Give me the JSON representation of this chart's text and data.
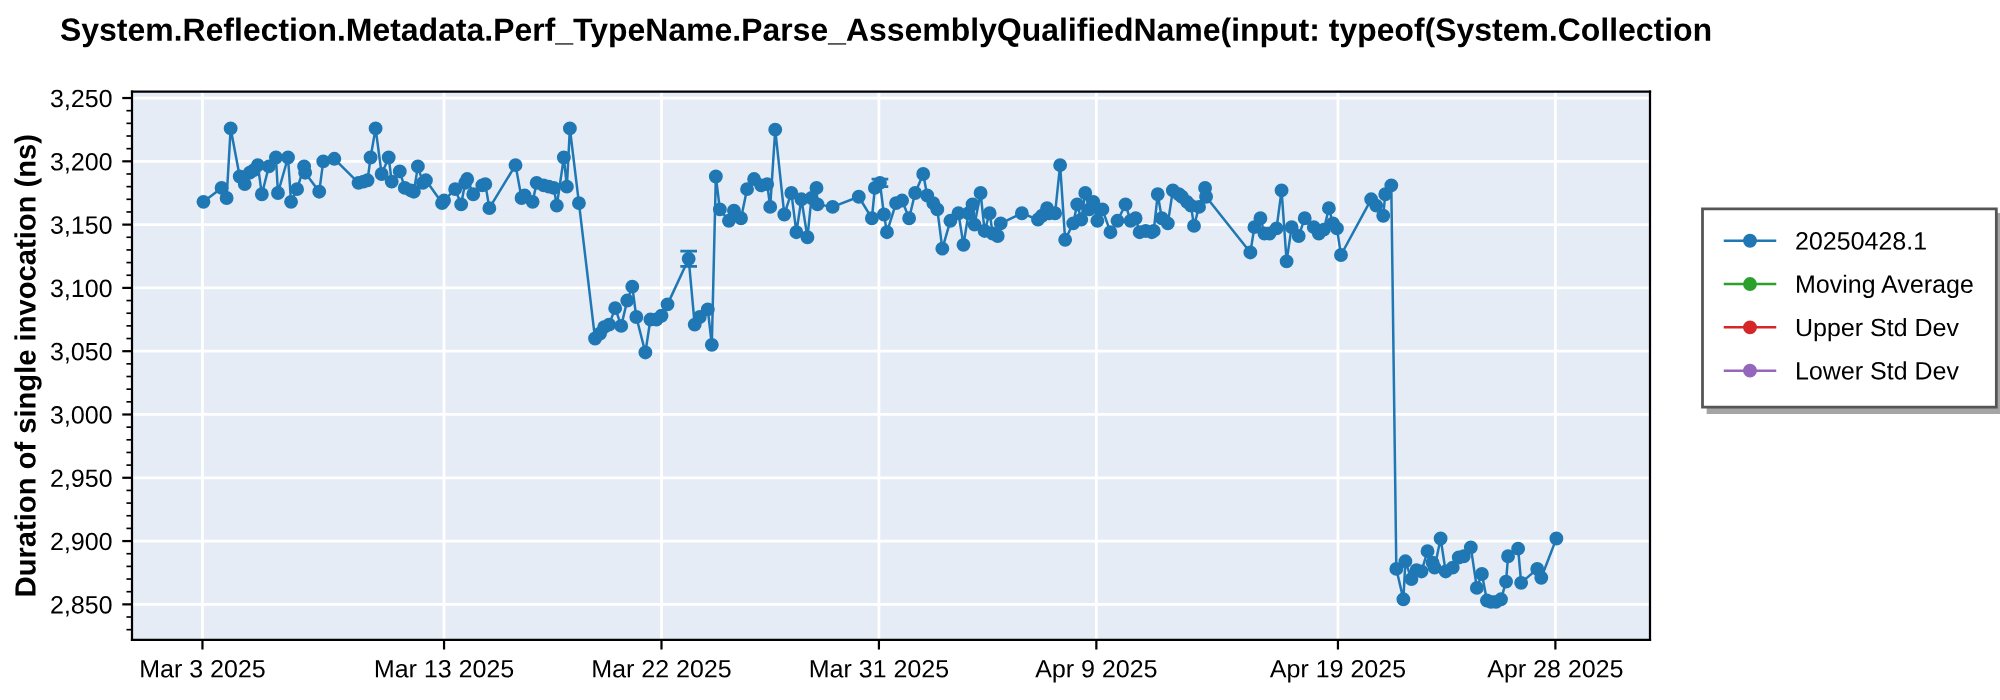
{
  "chart_data": {
    "type": "line",
    "title": "System.Reflection.Metadata.Perf_TypeName.Parse_AssemblyQualifiedName(input: typeof(System.Collection",
    "ylabel": "Duration of single invocation (ns)",
    "xlim": [
      "2025-02-28T02:00",
      "2025-05-01T22:00"
    ],
    "xticks": [
      {
        "value": "2025-03-03",
        "label": "Mar 3 2025"
      },
      {
        "value": "2025-03-13",
        "label": "Mar 13 2025"
      },
      {
        "value": "2025-03-22",
        "label": "Mar 22 2025"
      },
      {
        "value": "2025-03-31",
        "label": "Mar 31 2025"
      },
      {
        "value": "2025-04-09",
        "label": "Apr 9 2025"
      },
      {
        "value": "2025-04-19",
        "label": "Apr 19 2025"
      },
      {
        "value": "2025-04-28",
        "label": "Apr 28 2025"
      }
    ],
    "ylim": [
      2822,
      3255
    ],
    "yticks": [
      {
        "value": 2850,
        "label": "2,850"
      },
      {
        "value": 2900,
        "label": "2,900"
      },
      {
        "value": 2950,
        "label": "2,950"
      },
      {
        "value": 3000,
        "label": "3,000"
      },
      {
        "value": 3050,
        "label": "3,050"
      },
      {
        "value": 3100,
        "label": "3,100"
      },
      {
        "value": 3150,
        "label": "3,150"
      },
      {
        "value": 3200,
        "label": "3,200"
      },
      {
        "value": 3250,
        "label": "3,250"
      }
    ],
    "grid": true,
    "legend": "right",
    "marker": "circle",
    "line_style": "solid",
    "series": [
      {
        "name": "20250428.1",
        "color": "#1f77b4",
        "x": [
          "2025-03-03T01:00",
          "2025-03-03T19:00",
          "2025-03-04T00:00",
          "2025-03-04T04:00",
          "2025-03-04T13:00",
          "2025-03-04T18:00",
          "2025-03-04T23:00",
          "2025-03-05T03:00",
          "2025-03-05T07:00",
          "2025-03-05T11:00",
          "2025-03-05T18:00",
          "2025-03-06T01:00",
          "2025-03-06T03:00",
          "2025-03-06T13:00",
          "2025-03-06T16:00",
          "2025-03-06T22:00",
          "2025-03-07T05:00",
          "2025-03-07T06:00",
          "2025-03-07T20:00",
          "2025-03-08T00:00",
          "2025-03-08T11:00",
          "2025-03-09T11:00",
          "2025-03-09T16:00",
          "2025-03-09T20:00",
          "2025-03-09T23:00",
          "2025-03-10T04:00",
          "2025-03-10T10:00",
          "2025-03-10T17:00",
          "2025-03-10T20:00",
          "2025-03-11T04:00",
          "2025-03-11T09:00",
          "2025-03-11T15:00",
          "2025-03-11T18:00",
          "2025-03-11T22:00",
          "2025-03-12T03:00",
          "2025-03-12T06:00",
          "2025-03-12T22:00",
          "2025-03-13T00:00",
          "2025-03-13T11:00",
          "2025-03-13T17:00",
          "2025-03-13T21:00",
          "2025-03-13T23:00",
          "2025-03-14T05:00",
          "2025-03-14T14:00",
          "2025-03-14T17:00",
          "2025-03-14T21:00",
          "2025-03-15T23:00",
          "2025-03-16T05:00",
          "2025-03-16T08:00",
          "2025-03-16T16:00",
          "2025-03-16T20:00",
          "2025-03-17T03:00",
          "2025-03-17T08:00",
          "2025-03-17T13:00",
          "2025-03-17T16:00",
          "2025-03-17T23:00",
          "2025-03-18T02:00",
          "2025-03-18T05:00",
          "2025-03-18T14:00",
          "2025-03-19T06:00",
          "2025-03-19T11:00",
          "2025-03-19T15:00",
          "2025-03-19T20:00",
          "2025-03-20T02:00",
          "2025-03-20T08:00",
          "2025-03-20T14:00",
          "2025-03-20T19:00",
          "2025-03-20T23:00",
          "2025-03-21T08:00",
          "2025-03-21T13:00",
          "2025-03-21T19:00",
          "2025-03-22T00:00",
          "2025-03-22T06:00",
          "2025-03-23T03:00",
          "2025-03-23T09:00",
          "2025-03-23T14:00",
          "2025-03-23T22:00",
          "2025-03-24T02:00",
          "2025-03-24T06:00",
          "2025-03-24T10:00",
          "2025-03-24T19:00",
          "2025-03-25T00:00",
          "2025-03-25T07:00",
          "2025-03-25T13:00",
          "2025-03-25T20:00",
          "2025-03-26T03:00",
          "2025-03-26T09:00",
          "2025-03-26T12:00",
          "2025-03-26T17:00",
          "2025-03-27T02:00",
          "2025-03-27T09:00",
          "2025-03-27T14:00",
          "2025-03-27T19:00",
          "2025-03-28T01:00",
          "2025-03-28T05:00",
          "2025-03-28T10:00",
          "2025-03-28T11:00",
          "2025-03-29T02:00",
          "2025-03-30T04:00",
          "2025-03-30T17:00",
          "2025-03-30T20:00",
          "2025-03-31T01:00",
          "2025-03-31T05:00",
          "2025-03-31T08:00",
          "2025-03-31T17:00",
          "2025-03-31T23:00",
          "2025-04-01T06:00",
          "2025-04-01T12:00",
          "2025-04-01T20:00",
          "2025-04-02T00:00",
          "2025-04-02T06:00",
          "2025-04-02T10:00",
          "2025-04-02T15:00",
          "2025-04-02T23:00",
          "2025-04-03T07:00",
          "2025-04-03T12:00",
          "2025-04-03T17:00",
          "2025-04-03T21:00",
          "2025-04-03T23:00",
          "2025-04-04T05:00",
          "2025-04-04T09:00",
          "2025-04-04T14:00",
          "2025-04-04T17:00",
          "2025-04-04T22:00",
          "2025-04-05T01:00",
          "2025-04-05T22:00",
          "2025-04-06T14:00",
          "2025-04-06T18:00",
          "2025-04-06T23:00",
          "2025-04-07T01:00",
          "2025-04-07T07:00",
          "2025-04-07T12:00",
          "2025-04-07T17:00",
          "2025-04-08T01:00",
          "2025-04-08T05:00",
          "2025-04-08T09:00",
          "2025-04-08T13:00",
          "2025-04-08T17:00",
          "2025-04-08T21:00",
          "2025-04-09T01:00",
          "2025-04-09T06:00",
          "2025-04-09T14:00",
          "2025-04-09T21:00",
          "2025-04-10T05:00",
          "2025-04-10T10:00",
          "2025-04-10T15:00",
          "2025-04-10T19:00",
          "2025-04-11T01:00",
          "2025-04-11T07:00",
          "2025-04-11T09:00",
          "2025-04-11T13:00",
          "2025-04-11T17:00",
          "2025-04-11T23:00",
          "2025-04-12T04:00",
          "2025-04-12T10:00",
          "2025-04-12T13:00",
          "2025-04-12T18:00",
          "2025-04-12T22:00",
          "2025-04-13T01:00",
          "2025-04-13T06:00",
          "2025-04-13T12:00",
          "2025-04-13T13:00",
          "2025-04-15T09:00",
          "2025-04-15T13:00",
          "2025-04-15T19:00",
          "2025-04-15T23:00",
          "2025-04-16T04:00",
          "2025-04-16T11:00",
          "2025-04-16T16:00",
          "2025-04-16T21:00",
          "2025-04-17T02:00",
          "2025-04-17T09:00",
          "2025-04-17T15:00",
          "2025-04-18T00:00",
          "2025-04-18T05:00",
          "2025-04-18T10:00",
          "2025-04-18T15:00",
          "2025-04-18T19:00",
          "2025-04-18T23:00",
          "2025-04-19T03:00",
          "2025-04-20T09:00",
          "2025-04-20T14:00",
          "2025-04-20T21:00",
          "2025-04-20T23:00",
          "2025-04-21T05:00",
          "2025-04-21T10:00",
          "2025-04-21T17:00",
          "2025-04-21T19:00",
          "2025-04-22T01:00",
          "2025-04-22T06:00",
          "2025-04-22T11:00",
          "2025-04-22T17:00",
          "2025-04-22T22:00",
          "2025-04-23T00:00",
          "2025-04-23T06:00",
          "2025-04-23T11:00",
          "2025-04-23T18:00",
          "2025-04-24T00:00",
          "2025-04-24T05:00",
          "2025-04-24T12:00",
          "2025-04-24T18:00",
          "2025-04-24T23:00",
          "2025-04-25T04:00",
          "2025-04-25T08:00",
          "2025-04-25T13:00",
          "2025-04-25T18:00",
          "2025-04-25T23:00",
          "2025-04-26T01:00",
          "2025-04-26T11:00",
          "2025-04-26T14:00",
          "2025-04-27T06:00",
          "2025-04-27T10:00",
          "2025-04-28T01:00"
        ],
        "values": [
          3168,
          3179,
          3171,
          3226,
          3188,
          3182,
          3191,
          3193,
          3197,
          3174,
          3196,
          3203,
          3175,
          3203,
          3168,
          3178,
          3196,
          3191,
          3176,
          3200,
          3202,
          3183,
          3184,
          3185,
          3203,
          3226,
          3190,
          3203,
          3184,
          3192,
          3179,
          3177,
          3176,
          3196,
          3183,
          3185,
          3167,
          3169,
          3178,
          3166,
          3183,
          3186,
          3174,
          3181,
          3182,
          3163,
          3197,
          3171,
          3173,
          3168,
          3183,
          3181,
          3180,
          3179,
          3165,
          3203,
          3180,
          3226,
          3167,
          3060,
          3064,
          3069,
          3071,
          3084,
          3070,
          3090,
          3101,
          3077,
          3049,
          3075,
          3075,
          3078,
          3087,
          3123,
          3071,
          3077,
          3083,
          3055,
          3188,
          3162,
          3153,
          3161,
          3155,
          3178,
          3186,
          3181,
          3182,
          3164,
          3225,
          3158,
          3175,
          3144,
          3170,
          3140,
          3171,
          3179,
          3166,
          3164,
          3172,
          3155,
          3179,
          3183,
          3158,
          3144,
          3167,
          3169,
          3155,
          3175,
          3190,
          3173,
          3167,
          3162,
          3131,
          3153,
          3159,
          3134,
          3159,
          3166,
          3150,
          3175,
          3145,
          3159,
          3143,
          3141,
          3151,
          3159,
          3154,
          3157,
          3163,
          3159,
          3159,
          3197,
          3138,
          3151,
          3166,
          3154,
          3175,
          3162,
          3168,
          3153,
          3162,
          3144,
          3153,
          3166,
          3153,
          3155,
          3144,
          3145,
          3144,
          3145,
          3174,
          3155,
          3151,
          3177,
          3174,
          3172,
          3168,
          3165,
          3149,
          3164,
          3179,
          3172,
          3128,
          3148,
          3155,
          3143,
          3143,
          3147,
          3177,
          3121,
          3148,
          3141,
          3155,
          3148,
          3143,
          3146,
          3163,
          3151,
          3147,
          3126,
          3170,
          3165,
          3157,
          3174,
          3181,
          2878,
          2854,
          2884,
          2870,
          2877,
          2876,
          2892,
          2883,
          2879,
          2902,
          2876,
          2879,
          2887,
          2888,
          2895,
          2863,
          2874,
          2853,
          2852,
          2852,
          2854,
          2868,
          2888,
          2894,
          2867,
          2878,
          2871,
          2902
        ],
        "errors": [
          null,
          null,
          null,
          null,
          null,
          null,
          null,
          null,
          null,
          null,
          null,
          null,
          null,
          null,
          null,
          null,
          null,
          null,
          null,
          null,
          null,
          null,
          null,
          null,
          null,
          null,
          null,
          null,
          null,
          null,
          null,
          null,
          null,
          null,
          null,
          null,
          null,
          null,
          null,
          null,
          null,
          null,
          null,
          null,
          null,
          null,
          null,
          null,
          null,
          null,
          null,
          null,
          null,
          null,
          null,
          null,
          null,
          null,
          null,
          null,
          null,
          null,
          null,
          null,
          null,
          null,
          null,
          null,
          null,
          null,
          null,
          null,
          null,
          6,
          null,
          null,
          null,
          null,
          null,
          null,
          null,
          null,
          null,
          null,
          null,
          null,
          null,
          null,
          null,
          null,
          null,
          null,
          null,
          null,
          null,
          null,
          null,
          null,
          null,
          null,
          null,
          3,
          null,
          null,
          null,
          null,
          null,
          null,
          null,
          null,
          null,
          null,
          null,
          null,
          null,
          null,
          null,
          null,
          null,
          null,
          null,
          null,
          null,
          null,
          null,
          null,
          null,
          null,
          null,
          null,
          null,
          null,
          null,
          null,
          null,
          null,
          null,
          null,
          null,
          null,
          null,
          null,
          null,
          null,
          null,
          null,
          null,
          null,
          null,
          null,
          null,
          null,
          null,
          null,
          null,
          null,
          null,
          null,
          null,
          null,
          null,
          null,
          null,
          null,
          null,
          null,
          null,
          null,
          null,
          null,
          null,
          null,
          null,
          null,
          null,
          null,
          null,
          null,
          null,
          null,
          null,
          null,
          null,
          null,
          null,
          null,
          null,
          null,
          null,
          null,
          null,
          null,
          null,
          null,
          null,
          null,
          null,
          null,
          null,
          null,
          null,
          null,
          null,
          null,
          null,
          null,
          null,
          null,
          null,
          null,
          null,
          null,
          null
        ]
      },
      {
        "name": "Moving Average",
        "color": "#2ca02c"
      },
      {
        "name": "Upper Std Dev",
        "color": "#d62728"
      },
      {
        "name": "Lower Std Dev",
        "color": "#9467bd"
      }
    ]
  }
}
